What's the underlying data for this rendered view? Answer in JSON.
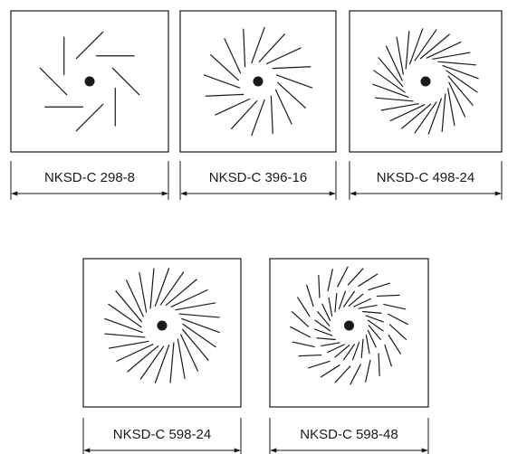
{
  "diffusers": [
    {
      "label": "NKSD-C 298-8",
      "slots": 8,
      "rings": 1,
      "slot_angle_deg": 45
    },
    {
      "label": "NKSD-C 396-16",
      "slots": 16,
      "rings": 1,
      "slot_angle_deg": 20
    },
    {
      "label": "NKSD-C 498-24",
      "slots": 24,
      "rings": 1,
      "slot_angle_deg": 35
    },
    {
      "label": "NKSD-C 598-24",
      "slots": 24,
      "rings": 1,
      "slot_angle_deg": 20
    },
    {
      "label": "NKSD-C 598-48",
      "slots": 48,
      "rings": 2,
      "slot_angle_deg": 35
    }
  ],
  "colors": {
    "stroke": "#1a1a1a",
    "background": "#ffffff"
  }
}
